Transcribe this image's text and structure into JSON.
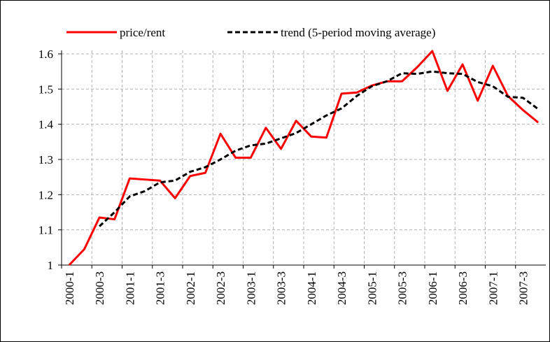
{
  "chart_data": {
    "type": "line",
    "categories": [
      "2000-1",
      null,
      "2000-3",
      null,
      "2001-1",
      null,
      "2001-3",
      null,
      "2002-1",
      null,
      "2002-3",
      null,
      "2003-1",
      null,
      "2003-3",
      null,
      "2004-1",
      null,
      "2004-3",
      null,
      "2005-1",
      null,
      "2005-3",
      null,
      "2006-1",
      null,
      "2006-3",
      null,
      "2007-1",
      null,
      "2007-3",
      null
    ],
    "series": [
      {
        "name": "price/rent",
        "color": "#ff0000",
        "dash": false,
        "values": [
          1.0,
          1.045,
          1.135,
          1.13,
          1.246,
          1.243,
          1.24,
          1.19,
          1.253,
          1.262,
          1.373,
          1.305,
          1.305,
          1.39,
          1.33,
          1.41,
          1.365,
          1.362,
          1.487,
          1.49,
          1.51,
          1.522,
          1.522,
          1.562,
          1.608,
          1.495,
          1.57,
          1.467,
          1.566,
          1.48,
          1.44,
          1.405
        ]
      },
      {
        "name": "trend (5-period moving average)",
        "color": "#000000",
        "dash": true,
        "values": [
          null,
          null,
          1.11,
          1.15,
          1.195,
          1.21,
          1.235,
          1.24,
          1.265,
          1.278,
          1.3,
          1.325,
          1.34,
          1.345,
          1.36,
          1.375,
          1.4,
          1.425,
          1.445,
          1.48,
          1.508,
          1.522,
          1.545,
          1.543,
          1.55,
          1.545,
          1.543,
          1.52,
          1.508,
          1.478,
          1.475,
          1.443
        ]
      }
    ],
    "ylim": [
      1,
      1.6
    ],
    "yticks": [
      1,
      1.1,
      1.2,
      1.3,
      1.4,
      1.5,
      1.6
    ],
    "grid": true,
    "legend": "top"
  }
}
